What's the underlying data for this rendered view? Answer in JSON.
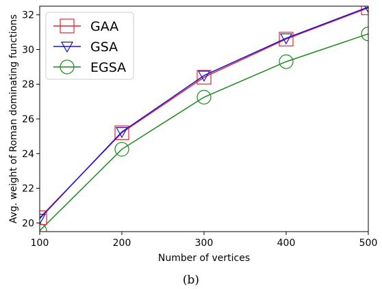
{
  "chart_data": {
    "type": "line",
    "xlabel": "Number of vertices",
    "ylabel": "Avg. weight of Roman dominating functions",
    "xlim": [
      100,
      500
    ],
    "ylim": [
      19.5,
      32.5
    ],
    "xticks": [
      100,
      200,
      300,
      400,
      500
    ],
    "yticks": [
      20,
      22,
      24,
      26,
      28,
      30,
      32
    ],
    "grid": false,
    "legend_position": "top-left",
    "series": [
      {
        "name": "GAA",
        "color": "#e8212b",
        "marker": "square",
        "x": [
          100,
          200,
          300,
          400,
          500
        ],
        "y": [
          20.3,
          25.2,
          28.4,
          30.6,
          32.4
        ]
      },
      {
        "name": "GSA",
        "color": "#1414d2",
        "marker": "triangle-down",
        "x": [
          100,
          200,
          300,
          400,
          500
        ],
        "y": [
          20.25,
          25.25,
          28.5,
          30.65,
          32.45
        ]
      },
      {
        "name": "EGSA",
        "color": "#1a8a1a",
        "marker": "circle",
        "x": [
          100,
          200,
          300,
          400,
          500
        ],
        "y": [
          19.55,
          24.25,
          27.25,
          29.3,
          30.9
        ]
      }
    ]
  },
  "caption": "(b)"
}
